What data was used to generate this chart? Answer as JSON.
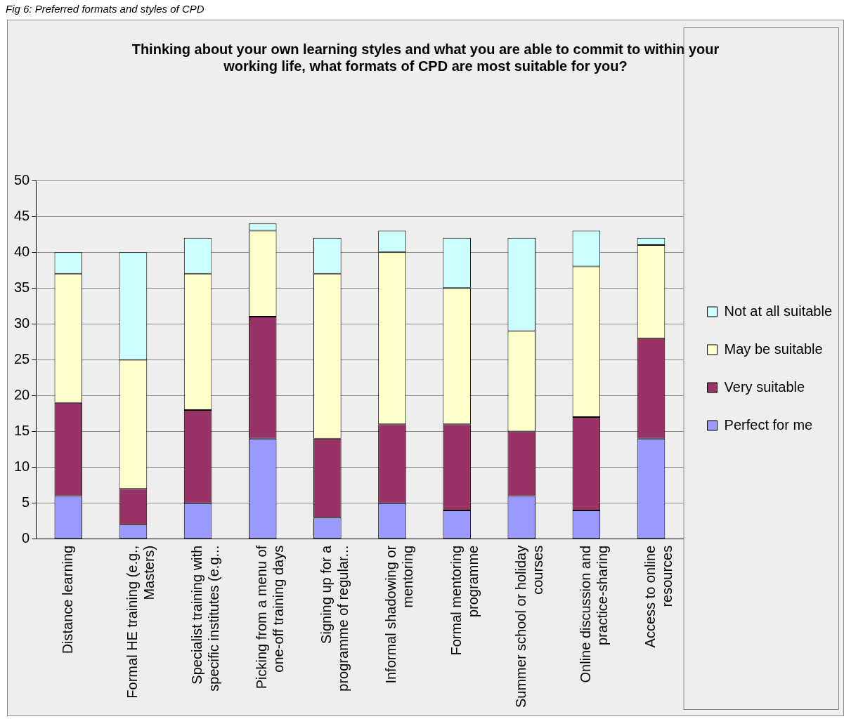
{
  "chart_data": {
    "type": "bar",
    "stacked": true,
    "title": "Thinking about your own learning styles and what you are able to commit to within your working life, what formats of CPD are most suitable for you?",
    "annotations": [
      "Fig 6: Preferred formats and styles of CPD"
    ],
    "categories": [
      "Distance learning",
      "Formal HE training (e.g., Masters)",
      "Specialist training with specific institutes (e.g...",
      "Picking from a menu of one-off training days",
      "Signing up for a programme of regular...",
      "Informal shadowing or mentoring",
      "Formal mentoring programme",
      "Summer school or holiday courses",
      "Online discussion and practice-sharing",
      "Access to online resources"
    ],
    "series": [
      {
        "name": "Perfect for me",
        "color": "#9999ff",
        "values": [
          6,
          2,
          5,
          14,
          3,
          5,
          4,
          6,
          4,
          14
        ]
      },
      {
        "name": "Very suitable",
        "color": "#993366",
        "values": [
          13,
          5,
          13,
          17,
          11,
          11,
          12,
          9,
          13,
          14
        ]
      },
      {
        "name": "May be suitable",
        "color": "#ffffcc",
        "values": [
          18,
          18,
          19,
          12,
          23,
          24,
          19,
          14,
          21,
          13
        ]
      },
      {
        "name": "Not at all suitable",
        "color": "#ccffff",
        "values": [
          3,
          15,
          5,
          1,
          5,
          3,
          7,
          13,
          5,
          1
        ]
      }
    ],
    "ylim": [
      0,
      50
    ],
    "yticks": [
      0,
      5,
      10,
      15,
      20,
      25,
      30,
      35,
      40,
      45,
      50
    ],
    "grid": "y",
    "legend": "right"
  }
}
